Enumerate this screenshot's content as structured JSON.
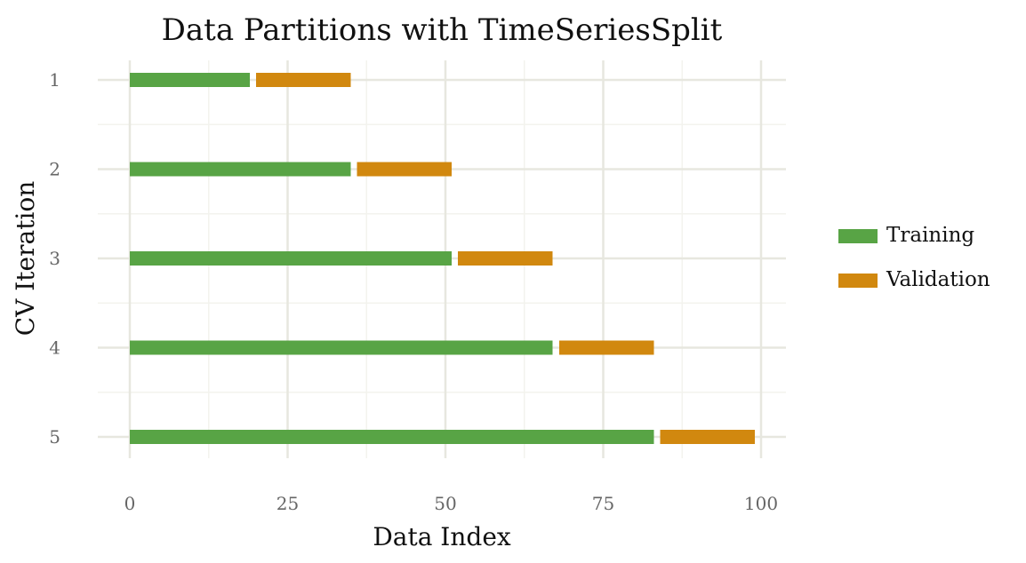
{
  "chart_data": {
    "type": "bar",
    "orientation": "horizontal",
    "title": "Data Partitions with TimeSeriesSplit",
    "xlabel": "Data Index",
    "ylabel": "CV Iteration",
    "xlim": [
      0,
      100
    ],
    "x_ticks": [
      "0",
      "25",
      "50",
      "75",
      "100"
    ],
    "y_categories": [
      "1",
      "2",
      "3",
      "4",
      "5"
    ],
    "grid": true,
    "legend": {
      "placement": "right",
      "items": [
        {
          "label": "Training",
          "color": "#58a445"
        },
        {
          "label": "Validation",
          "color": "#d1880f"
        }
      ]
    },
    "series": [
      {
        "name": "Training",
        "color": "#58a445",
        "segments": [
          {
            "iteration": "1",
            "start": 0,
            "end": 19
          },
          {
            "iteration": "2",
            "start": 0,
            "end": 35
          },
          {
            "iteration": "3",
            "start": 0,
            "end": 51
          },
          {
            "iteration": "4",
            "start": 0,
            "end": 67
          },
          {
            "iteration": "5",
            "start": 0,
            "end": 83
          }
        ]
      },
      {
        "name": "Validation",
        "color": "#d1880f",
        "segments": [
          {
            "iteration": "1",
            "start": 20,
            "end": 35
          },
          {
            "iteration": "2",
            "start": 36,
            "end": 51
          },
          {
            "iteration": "3",
            "start": 52,
            "end": 67
          },
          {
            "iteration": "4",
            "start": 68,
            "end": 83
          },
          {
            "iteration": "5",
            "start": 84,
            "end": 99
          }
        ]
      }
    ]
  }
}
